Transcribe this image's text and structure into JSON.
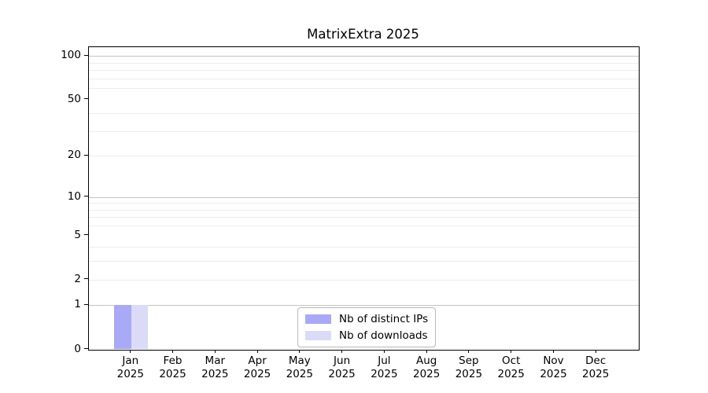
{
  "chart_data": {
    "type": "bar",
    "title": "MatrixExtra 2025",
    "categories": [
      "Jan 2025",
      "Feb 2025",
      "Mar 2025",
      "Apr 2025",
      "May 2025",
      "Jun 2025",
      "Jul 2025",
      "Aug 2025",
      "Sep 2025",
      "Oct 2025",
      "Nov 2025",
      "Dec 2025"
    ],
    "x_tick_months": [
      "Jan",
      "Feb",
      "Mar",
      "Apr",
      "May",
      "Jun",
      "Jul",
      "Aug",
      "Sep",
      "Oct",
      "Nov",
      "Dec"
    ],
    "x_tick_year": "2025",
    "series": [
      {
        "name": "Nb of distinct IPs",
        "color": "#a9a9f6",
        "values": [
          1,
          0,
          0,
          0,
          0,
          0,
          0,
          0,
          0,
          0,
          0,
          0
        ]
      },
      {
        "name": "Nb of downloads",
        "color": "#dbdbf8",
        "values": [
          1,
          0,
          0,
          0,
          0,
          0,
          0,
          0,
          0,
          0,
          0,
          0
        ]
      }
    ],
    "xlabel": "",
    "ylabel": "",
    "y_scale": "log1p",
    "ylim": [
      0,
      115
    ],
    "y_tick_labels": [
      "0",
      "1",
      "2",
      "5",
      "10",
      "20",
      "50",
      "100"
    ],
    "y_tick_values": [
      0,
      1,
      2,
      5,
      10,
      20,
      50,
      100
    ],
    "y_major_gridlines": [
      1,
      10,
      100
    ],
    "y_minor_gridlines": [
      2,
      3,
      4,
      6,
      7,
      8,
      9,
      20,
      30,
      40,
      60,
      70,
      80,
      90
    ],
    "grid": true,
    "legend": {
      "position": "lower center",
      "entries": [
        {
          "label": "Nb of distinct IPs",
          "color": "#a9a9f6"
        },
        {
          "label": "Nb of downloads",
          "color": "#dbdbf8"
        }
      ]
    },
    "colors": {
      "major_grid": "#c4c4c4",
      "minor_grid": "#ededed",
      "spine": "#000000",
      "text": "#000000",
      "background": "#ffffff"
    }
  }
}
